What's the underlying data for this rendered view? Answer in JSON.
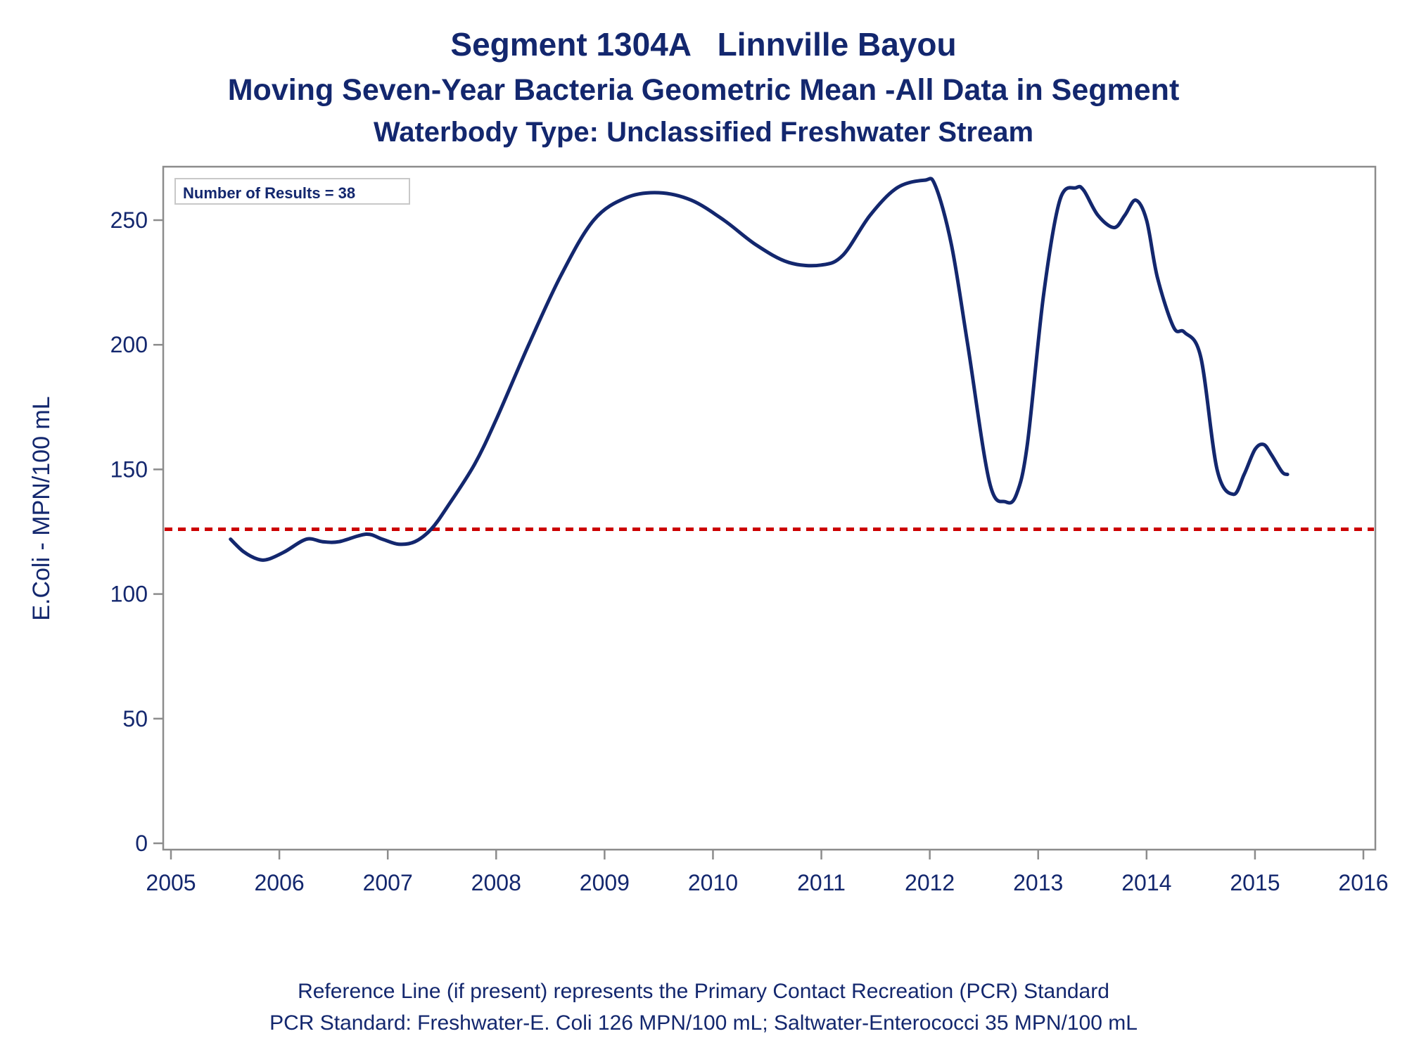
{
  "titles": {
    "line1": "Segment 1304A   Linnville Bayou",
    "line2": "Moving Seven-Year Bacteria Geometric Mean -All Data in Segment",
    "line3": "Waterbody Type: Unclassified Freshwater Stream"
  },
  "footnotes": {
    "line1": "Reference Line (if present) represents the Primary Contact Recreation (PCR) Standard",
    "line2": "PCR Standard: Freshwater-E. Coli 126 MPN/100 mL; Saltwater-Enterococci 35 MPN/100 mL"
  },
  "colors": {
    "line": "#13276e",
    "reference": "#cc0000",
    "frame": "#8c8c8c",
    "text": "#13276e"
  },
  "chart_data": {
    "type": "line",
    "ylabel": "E.Coli - MPN/100 mL",
    "xlabel": "",
    "xlim": [
      2005,
      2016
    ],
    "ylim": [
      0,
      270
    ],
    "x_ticks": [
      "2005",
      "2006",
      "2007",
      "2008",
      "2009",
      "2010",
      "2011",
      "2012",
      "2013",
      "2014",
      "2015",
      "2016"
    ],
    "y_ticks": [
      "0",
      "50",
      "100",
      "150",
      "200",
      "250"
    ],
    "annotation": "Number of Results = 38",
    "reference_line": {
      "y": 126,
      "style": "dashed"
    },
    "x": [
      2005.55,
      2005.67,
      2005.8,
      2005.9,
      2006.05,
      2006.25,
      2006.4,
      2006.55,
      2006.8,
      2006.95,
      2007.1,
      2007.25,
      2007.4,
      2007.55,
      2007.8,
      2008.0,
      2008.3,
      2008.6,
      2008.9,
      2009.2,
      2009.5,
      2009.8,
      2010.1,
      2010.4,
      2010.7,
      2011.0,
      2011.2,
      2011.45,
      2011.7,
      2011.95,
      2012.05,
      2012.2,
      2012.35,
      2012.55,
      2012.7,
      2012.8,
      2012.9,
      2013.05,
      2013.2,
      2013.35,
      2013.42,
      2013.55,
      2013.7,
      2013.8,
      2013.9,
      2014.0,
      2014.1,
      2014.25,
      2014.35,
      2014.5,
      2014.65,
      2014.8,
      2014.9,
      2015.0,
      2015.08,
      2015.15,
      2015.25,
      2015.3
    ],
    "y": [
      122,
      117,
      114,
      114,
      117,
      122,
      121,
      121,
      124,
      122,
      120,
      121,
      126,
      135,
      152,
      170,
      200,
      228,
      250,
      259,
      261,
      258,
      250,
      240,
      233,
      232,
      236,
      252,
      263,
      266,
      264,
      240,
      200,
      145,
      137,
      140,
      160,
      220,
      258,
      263,
      262,
      252,
      247,
      252,
      258,
      250,
      227,
      207,
      205,
      195,
      150,
      140,
      148,
      158,
      160,
      156,
      149,
      148
    ]
  }
}
